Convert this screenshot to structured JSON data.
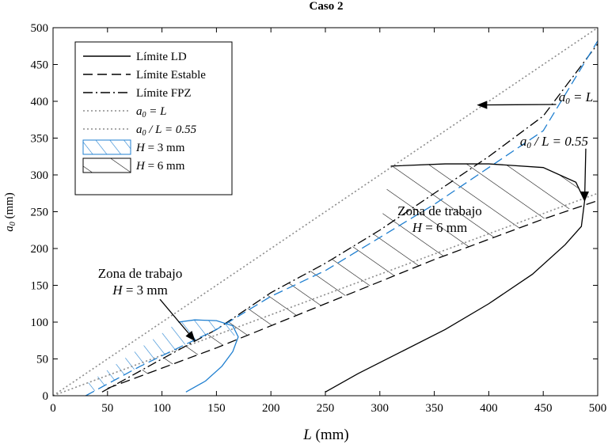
{
  "chart_data": {
    "type": "line",
    "title": "Caso 2",
    "xlabel": "L (mm)",
    "ylabel": "a0 (mm)",
    "xlim": [
      0,
      500
    ],
    "ylim": [
      0,
      500
    ],
    "xticks": [
      0,
      50,
      100,
      150,
      200,
      250,
      300,
      350,
      400,
      450,
      500
    ],
    "yticks": [
      0,
      50,
      100,
      150,
      200,
      250,
      300,
      350,
      400,
      450,
      500
    ],
    "grid": false,
    "legend_position": "top-left",
    "legend": [
      {
        "label": "Límite LD",
        "style": "solid",
        "color": "#000000"
      },
      {
        "label": "Límite Estable",
        "style": "dashed",
        "color": "#000000"
      },
      {
        "label": "Límite FPZ",
        "style": "dashdot",
        "color": "#000000"
      },
      {
        "label": "a0 = L",
        "style": "dotted",
        "color": "#8c8c8c"
      },
      {
        "label": "a0 / L = 0.55",
        "style": "dotted",
        "color": "#8c8c8c"
      },
      {
        "label": "H = 3 mm",
        "style": "hatch",
        "color": "#1f7fd0"
      },
      {
        "label": "H = 6 mm",
        "style": "hatch",
        "color": "#000000"
      }
    ],
    "series": [
      {
        "name": "a0 = L",
        "color": "#8c8c8c",
        "style": "dotted",
        "points": [
          [
            0,
            0
          ],
          [
            500,
            500
          ]
        ]
      },
      {
        "name": "a0 / L = 0.55",
        "color": "#8c8c8c",
        "style": "dotted",
        "points": [
          [
            0,
            0
          ],
          [
            500,
            275
          ]
        ]
      },
      {
        "name": "Límite Estable H = 6 mm",
        "color": "#000000",
        "style": "dashed",
        "points": [
          [
            50,
            10
          ],
          [
            150,
            65
          ],
          [
            250,
            125
          ],
          [
            350,
            185
          ],
          [
            450,
            240
          ],
          [
            500,
            265
          ]
        ]
      },
      {
        "name": "Límite FPZ H = 6 mm",
        "color": "#000000",
        "style": "dashdot",
        "points": [
          [
            45,
            5
          ],
          [
            100,
            50
          ],
          [
            150,
            90
          ],
          [
            200,
            140
          ],
          [
            250,
            180
          ],
          [
            300,
            225
          ],
          [
            350,
            275
          ],
          [
            400,
            325
          ],
          [
            450,
            380
          ],
          [
            500,
            478
          ]
        ]
      },
      {
        "name": "Límite Estable H = 3 mm",
        "color": "#1f7fd0",
        "style": "dashed",
        "points": [
          [
            30,
            0
          ],
          [
            80,
            40
          ],
          [
            150,
            90
          ],
          [
            200,
            135
          ],
          [
            250,
            170
          ],
          [
            300,
            215
          ],
          [
            350,
            260
          ],
          [
            400,
            310
          ],
          [
            450,
            360
          ],
          [
            500,
            482
          ]
        ]
      },
      {
        "name": "Límite LD H = 6 mm",
        "color": "#000000",
        "style": "solid",
        "points": [
          [
            250,
            5
          ],
          [
            280,
            30
          ],
          [
            320,
            60
          ],
          [
            360,
            90
          ],
          [
            400,
            125
          ],
          [
            440,
            165
          ],
          [
            470,
            205
          ],
          [
            485,
            230
          ],
          [
            488,
            265
          ],
          [
            480,
            290
          ],
          [
            450,
            310
          ],
          [
            400,
            315
          ],
          [
            360,
            315
          ],
          [
            310,
            312
          ]
        ]
      },
      {
        "name": "Límite LD H = 3 mm",
        "color": "#1f7fd0",
        "style": "solid",
        "points": [
          [
            122,
            5
          ],
          [
            140,
            20
          ],
          [
            155,
            40
          ],
          [
            165,
            60
          ],
          [
            170,
            80
          ],
          [
            165,
            95
          ],
          [
            150,
            102
          ],
          [
            130,
            103
          ],
          [
            115,
            100
          ]
        ]
      }
    ],
    "zones": [
      {
        "label": "H = 6 mm",
        "color": "#000000",
        "polygon": [
          [
            50,
            10
          ],
          [
            150,
            65
          ],
          [
            250,
            125
          ],
          [
            350,
            185
          ],
          [
            450,
            240
          ],
          [
            488,
            262
          ],
          [
            480,
            290
          ],
          [
            450,
            310
          ],
          [
            400,
            315
          ],
          [
            360,
            315
          ],
          [
            310,
            312
          ],
          [
            300,
            225
          ],
          [
            250,
            180
          ],
          [
            200,
            140
          ],
          [
            150,
            90
          ],
          [
            100,
            50
          ],
          [
            45,
            5
          ]
        ]
      },
      {
        "label": "H = 3 mm",
        "color": "#1f7fd0",
        "polygon": [
          [
            30,
            0
          ],
          [
            80,
            40
          ],
          [
            150,
            90
          ],
          [
            170,
            80
          ],
          [
            165,
            95
          ],
          [
            150,
            102
          ],
          [
            130,
            103
          ],
          [
            115,
            100
          ],
          [
            100,
            85
          ],
          [
            70,
            55
          ],
          [
            40,
            25
          ],
          [
            30,
            15
          ]
        ]
      }
    ],
    "annotations": [
      {
        "text_parts": [
          "a",
          "0",
          " = L"
        ],
        "at": [
          480,
          400
        ],
        "arrow_to": [
          390,
          395
        ]
      },
      {
        "text_parts": [
          "a",
          "0",
          " / L = 0.55"
        ],
        "at": [
          460,
          340
        ],
        "arrow_to": [
          488,
          265
        ]
      },
      {
        "text_lines": [
          "Zona de trabajo",
          "H = 6 mm"
        ],
        "at": [
          355,
          245
        ]
      },
      {
        "text_lines": [
          "Zona de trabajo",
          "H = 3 mm"
        ],
        "at": [
          80,
          160
        ],
        "arrow_to": [
          130,
          75
        ]
      }
    ]
  }
}
